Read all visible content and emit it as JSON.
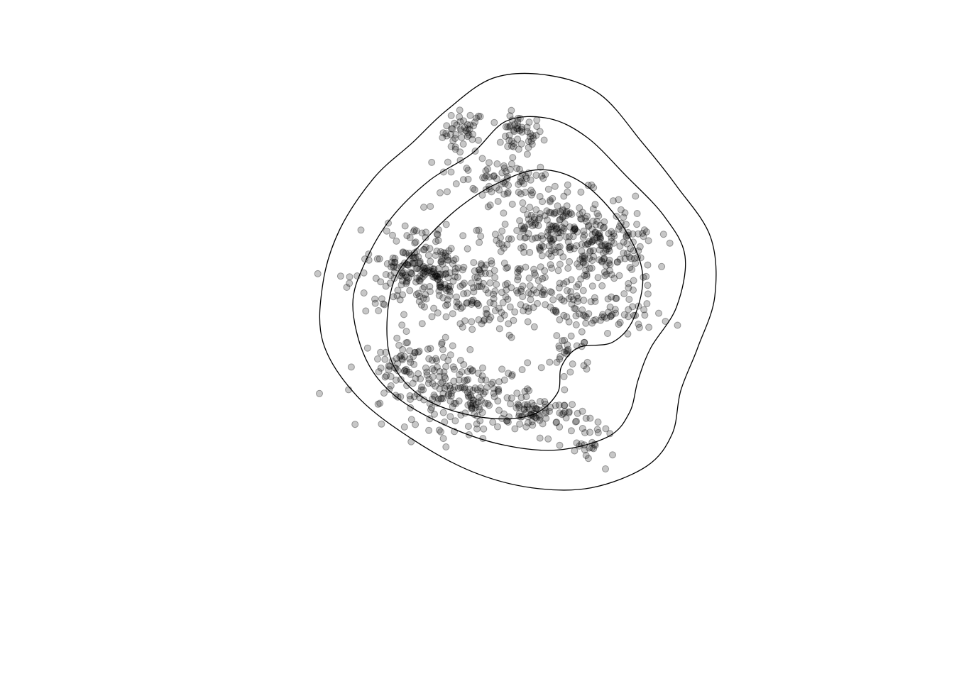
{
  "chart_data": {
    "type": "scatter",
    "title": "",
    "xlabel": "",
    "ylabel": "",
    "axes_visible": false,
    "grid": false,
    "legend": "none",
    "point_color": "#000000",
    "point_alpha": 0.25,
    "xlim": [
      0,
      100
    ],
    "ylim": [
      0,
      100
    ],
    "contours": [
      {
        "name": "outer",
        "points": [
          [
            42.0,
            94.0
          ],
          [
            47.5,
            100.0
          ],
          [
            54.0,
            100.5
          ],
          [
            60.0,
            97.0
          ],
          [
            65.0,
            88.0
          ],
          [
            69.0,
            80.0
          ],
          [
            73.0,
            70.5
          ],
          [
            73.5,
            59.5
          ],
          [
            71.5,
            50.0
          ],
          [
            69.5,
            42.0
          ],
          [
            68.5,
            34.0
          ],
          [
            65.5,
            28.0
          ],
          [
            59.0,
            24.0
          ],
          [
            52.0,
            24.0
          ],
          [
            45.0,
            27.0
          ],
          [
            38.0,
            33.0
          ],
          [
            31.5,
            41.0
          ],
          [
            27.5,
            51.0
          ],
          [
            27.5,
            62.0
          ],
          [
            29.5,
            72.0
          ],
          [
            33.5,
            81.5
          ],
          [
            38.0,
            88.0
          ]
        ]
      },
      {
        "name": "middle",
        "points": [
          [
            45.0,
            86.0
          ],
          [
            49.0,
            92.0
          ],
          [
            54.0,
            92.5
          ],
          [
            58.5,
            89.0
          ],
          [
            63.0,
            82.0
          ],
          [
            67.5,
            74.5
          ],
          [
            70.0,
            67.0
          ],
          [
            69.0,
            57.5
          ],
          [
            66.0,
            50.0
          ],
          [
            64.5,
            44.0
          ],
          [
            63.5,
            38.0
          ],
          [
            61.0,
            33.5
          ],
          [
            55.0,
            31.0
          ],
          [
            48.5,
            32.0
          ],
          [
            42.0,
            35.5
          ],
          [
            36.0,
            41.0
          ],
          [
            32.5,
            48.0
          ],
          [
            31.0,
            58.0
          ],
          [
            32.5,
            66.0
          ],
          [
            35.5,
            74.0
          ],
          [
            40.0,
            81.0
          ]
        ]
      },
      {
        "name": "inner",
        "points": [
          [
            48.0,
            80.5
          ],
          [
            53.0,
            83.0
          ],
          [
            58.0,
            80.5
          ],
          [
            62.5,
            73.0
          ],
          [
            65.0,
            64.0
          ],
          [
            64.0,
            55.5
          ],
          [
            61.5,
            51.0
          ],
          [
            57.5,
            50.0
          ],
          [
            55.5,
            46.5
          ],
          [
            55.0,
            41.5
          ],
          [
            52.0,
            37.5
          ],
          [
            46.5,
            37.0
          ],
          [
            40.0,
            40.0
          ],
          [
            36.0,
            46.0
          ],
          [
            35.0,
            53.5
          ],
          [
            36.0,
            63.0
          ],
          [
            39.5,
            70.0
          ],
          [
            43.5,
            76.0
          ]
        ]
      }
    ],
    "point_clusters": [
      {
        "x": 44.0,
        "y": 90.0,
        "sx": 1.2,
        "sy": 2.0,
        "n": 45
      },
      {
        "x": 50.5,
        "y": 89.5,
        "sx": 1.4,
        "sy": 1.8,
        "n": 50
      },
      {
        "x": 46.0,
        "y": 82.0,
        "sx": 2.5,
        "sy": 2.2,
        "n": 40
      },
      {
        "x": 51.0,
        "y": 81.0,
        "sx": 2.0,
        "sy": 2.0,
        "n": 30
      },
      {
        "x": 55.0,
        "y": 72.0,
        "sx": 4.5,
        "sy": 3.5,
        "n": 220
      },
      {
        "x": 61.0,
        "y": 67.5,
        "sx": 3.0,
        "sy": 2.8,
        "n": 110
      },
      {
        "x": 40.0,
        "y": 63.0,
        "sx": 4.5,
        "sy": 3.0,
        "n": 200
      },
      {
        "x": 38.5,
        "y": 68.0,
        "sx": 2.5,
        "sy": 3.5,
        "n": 60
      },
      {
        "x": 52.0,
        "y": 60.5,
        "sx": 3.5,
        "sy": 2.5,
        "n": 60
      },
      {
        "x": 60.0,
        "y": 56.5,
        "sx": 4.0,
        "sy": 2.5,
        "n": 80
      },
      {
        "x": 56.5,
        "y": 49.5,
        "sx": 1.5,
        "sy": 2.5,
        "n": 25
      },
      {
        "x": 44.0,
        "y": 41.0,
        "sx": 4.5,
        "sy": 3.0,
        "n": 190
      },
      {
        "x": 38.0,
        "y": 47.0,
        "sx": 3.0,
        "sy": 2.5,
        "n": 70
      },
      {
        "x": 53.0,
        "y": 37.5,
        "sx": 2.5,
        "sy": 1.8,
        "n": 70
      },
      {
        "x": 59.0,
        "y": 32.0,
        "sx": 1.5,
        "sy": 1.8,
        "n": 25
      },
      {
        "x": 46.0,
        "y": 56.0,
        "sx": 3.5,
        "sy": 3.0,
        "n": 60
      }
    ]
  }
}
